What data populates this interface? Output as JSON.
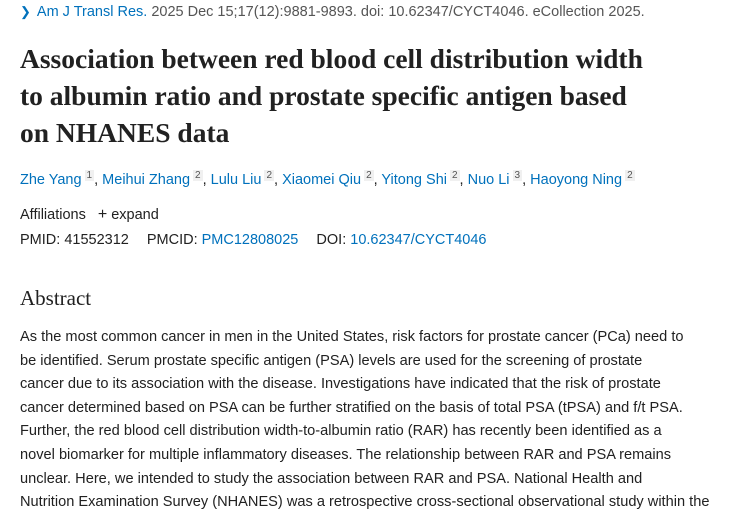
{
  "citation": {
    "journal": "Am J Transl Res.",
    "details": " 2025 Dec 15;17(12):9881-9893. doi: 10.62347/CYCT4046. eCollection 2025."
  },
  "title_lines": [
    "Association between red blood cell distribution width",
    "to albumin ratio and prostate specific antigen based",
    "on NHANES data"
  ],
  "authors": [
    {
      "name": "Zhe Yang",
      "aff": "1"
    },
    {
      "name": "Meihui Zhang",
      "aff": "2"
    },
    {
      "name": "Lulu Liu",
      "aff": "2"
    },
    {
      "name": "Xiaomei Qiu",
      "aff": "2"
    },
    {
      "name": "Yitong Shi",
      "aff": "2"
    },
    {
      "name": "Nuo Li",
      "aff": "3"
    },
    {
      "name": "Haoyong Ning",
      "aff": "2"
    }
  ],
  "affiliations": {
    "label": "Affiliations",
    "expand": "expand"
  },
  "ids": {
    "pmid_label": "PMID:",
    "pmid": "41552312",
    "pmcid_label": "PMCID:",
    "pmcid": "PMC12808025",
    "doi_label": "DOI:",
    "doi": "10.62347/CYCT4046"
  },
  "abstract": {
    "heading": "Abstract",
    "lines": [
      "As the most common cancer in men in the United States, risk factors for prostate cancer (PCa) need to",
      "be identified. Serum prostate specific antigen (PSA) levels are used for the screening of prostate",
      "cancer due to its association with the disease. Investigations have indicated that the risk of prostate",
      "cancer determined based on PSA can be further stratified on the basis of total PSA (tPSA) and f/t PSA.",
      "Further, the red blood cell distribution width-to-albumin ratio (RAR) has recently been identified as a",
      "novel biomarker for multiple inflammatory diseases. The relationship between RAR and PSA remains",
      "unclear. Here, we intended to study the association between RAR and PSA. National Health and",
      "Nutrition Examination Survey (NHANES) was a retrospective cross-sectional observational study within the"
    ]
  }
}
